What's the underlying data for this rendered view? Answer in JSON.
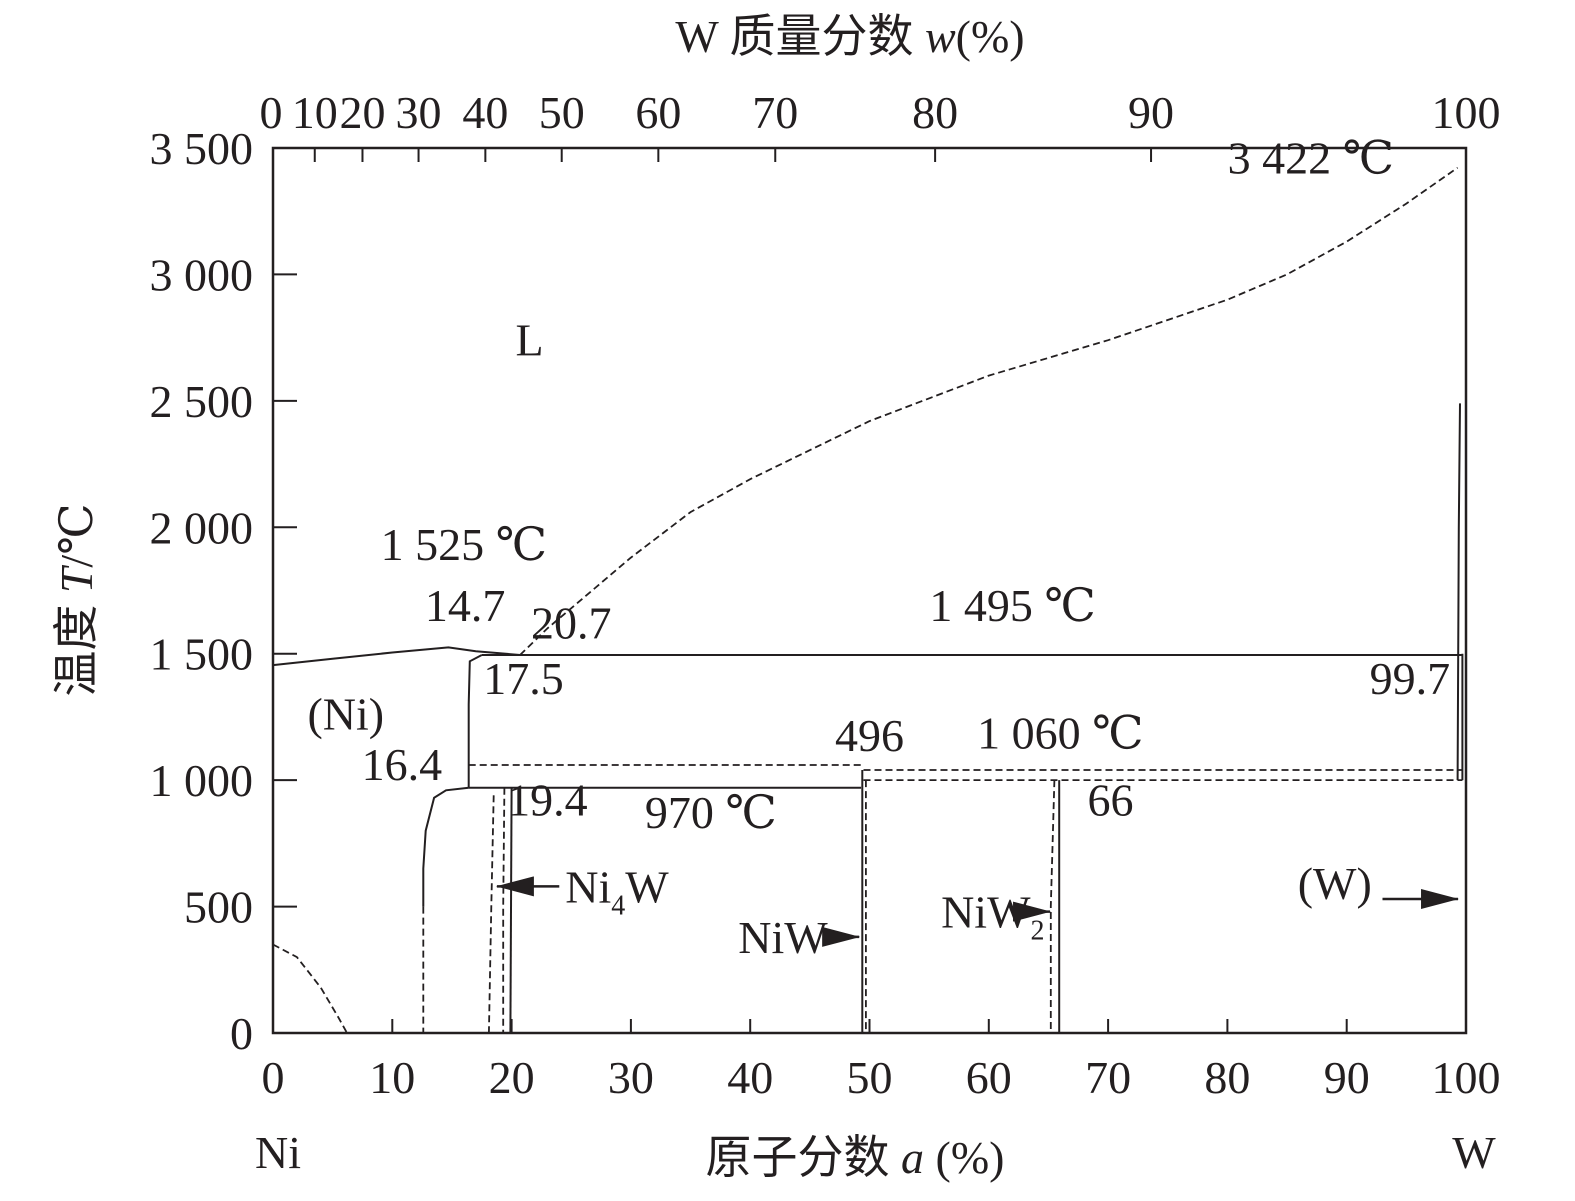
{
  "chart_data": {
    "type": "line",
    "title": "",
    "xlabel": {
      "text": "原子分数 ",
      "var": "a",
      "unit": " (%)"
    },
    "ylabel": {
      "text": "温度 ",
      "var": "T",
      "unit": "/℃"
    },
    "top_xlabel": {
      "text": "W 质量分数 ",
      "var": "w",
      "unit": "(%)"
    },
    "xlim": [
      0,
      100
    ],
    "ylim": [
      0,
      3500
    ],
    "x_ticks": [
      0,
      10,
      20,
      30,
      40,
      50,
      60,
      70,
      80,
      90,
      100
    ],
    "x_tick_labels": [
      "0",
      "10",
      "20",
      "30",
      "40",
      "50",
      "60",
      "70",
      "80",
      "90",
      "100"
    ],
    "y_ticks": [
      0,
      500,
      1000,
      1500,
      2000,
      2500,
      3000,
      3500
    ],
    "y_tick_labels": [
      "0",
      "500",
      "1 000",
      "1 500",
      "2 000",
      "2 500",
      "3 000",
      "3 500"
    ],
    "top_ticks": [
      {
        "a": 0,
        "label": "0"
      },
      {
        "a": 3.5,
        "label": "10"
      },
      {
        "a": 7.5,
        "label": "20"
      },
      {
        "a": 12.2,
        "label": "30"
      },
      {
        "a": 17.8,
        "label": "40"
      },
      {
        "a": 24.2,
        "label": "50"
      },
      {
        "a": 32.3,
        "label": "60"
      },
      {
        "a": 42.1,
        "label": "70"
      },
      {
        "a": 55.5,
        "label": "80"
      },
      {
        "a": 73.6,
        "label": "90"
      },
      {
        "a": 100,
        "label": "100"
      }
    ],
    "element_labels": {
      "left": "Ni",
      "right": "W"
    },
    "series": [
      {
        "style": "solid",
        "points": [
          [
            0,
            1455
          ],
          [
            5,
            1480
          ],
          [
            10,
            1505
          ],
          [
            14.7,
            1525
          ],
          [
            17,
            1510
          ],
          [
            20.7,
            1495
          ]
        ]
      },
      {
        "style": "dashed",
        "points": [
          [
            20.7,
            1495
          ],
          [
            23,
            1600
          ],
          [
            27,
            1760
          ],
          [
            30,
            1880
          ],
          [
            35,
            2060
          ],
          [
            40,
            2190
          ],
          [
            50,
            2420
          ],
          [
            60,
            2600
          ],
          [
            70,
            2740
          ],
          [
            80,
            2900
          ],
          [
            85,
            3000
          ],
          [
            90,
            3130
          ],
          [
            95,
            3280
          ],
          [
            99.3,
            3422
          ]
        ]
      },
      {
        "style": "solid",
        "points": [
          [
            17.5,
            1495
          ],
          [
            99.7,
            1495
          ]
        ]
      },
      {
        "style": "solid",
        "points": [
          [
            17.5,
            1495
          ],
          [
            16.5,
            1470
          ],
          [
            16.4,
            1300
          ],
          [
            16.4,
            1050
          ],
          [
            16.4,
            970
          ]
        ]
      },
      {
        "style": "solid",
        "points": [
          [
            16.4,
            970
          ],
          [
            14.5,
            960
          ],
          [
            13.5,
            930
          ],
          [
            12.8,
            800
          ],
          [
            12.6,
            650
          ],
          [
            12.6,
            500
          ]
        ]
      },
      {
        "style": "dashed",
        "points": [
          [
            12.6,
            500
          ],
          [
            12.6,
            0
          ]
        ]
      },
      {
        "style": "solid",
        "points": [
          [
            16.4,
            970
          ],
          [
            49.3,
            970
          ]
        ]
      },
      {
        "style": "dashed",
        "points": [
          [
            16.4,
            1060
          ],
          [
            49.5,
            1060
          ]
        ]
      },
      {
        "style": "dashed",
        "points": [
          [
            49.5,
            1040
          ],
          [
            99.7,
            1040
          ]
        ]
      },
      {
        "style": "dashed",
        "points": [
          [
            49.5,
            1000
          ],
          [
            99.7,
            1000
          ]
        ]
      },
      {
        "style": "dashed",
        "points": [
          [
            18.5,
            940
          ],
          [
            18.3,
            500
          ],
          [
            18.1,
            0
          ]
        ]
      },
      {
        "style": "dashed",
        "points": [
          [
            19.4,
            970
          ],
          [
            19.3,
            500
          ],
          [
            19.3,
            0
          ]
        ]
      },
      {
        "style": "solid",
        "points": [
          [
            20.0,
            970
          ],
          [
            19.9,
            0
          ]
        ]
      },
      {
        "style": "solid",
        "points": [
          [
            49.4,
            1040
          ],
          [
            49.4,
            0
          ]
        ]
      },
      {
        "style": "dashed",
        "points": [
          [
            49.7,
            1000
          ],
          [
            49.7,
            0
          ]
        ]
      },
      {
        "style": "dashed",
        "points": [
          [
            65.5,
            1000
          ],
          [
            65.2,
            500
          ],
          [
            65.2,
            0
          ]
        ]
      },
      {
        "style": "solid",
        "points": [
          [
            65.9,
            1000
          ],
          [
            65.9,
            0
          ]
        ]
      },
      {
        "style": "solid",
        "points": [
          [
            99.5,
            2490
          ],
          [
            99.4,
            2000
          ],
          [
            99.3,
            1000
          ]
        ]
      },
      {
        "style": "solid",
        "points": [
          [
            99.7,
            1500
          ],
          [
            99.7,
            1000
          ]
        ]
      },
      {
        "style": "dashed",
        "points": [
          [
            0,
            350
          ],
          [
            2,
            300
          ],
          [
            4,
            180
          ],
          [
            5.5,
            60
          ],
          [
            6.2,
            0
          ]
        ]
      }
    ],
    "annotations": [
      {
        "text": "3 422 ℃",
        "x": 87,
        "y": 3400
      },
      {
        "text": "L",
        "x": 21.5,
        "y": 2680
      },
      {
        "text": "1 525 ℃",
        "x": 16,
        "y": 1870
      },
      {
        "text": "14.7",
        "x": 16.1,
        "y": 1630
      },
      {
        "text": "20.7",
        "x": 25,
        "y": 1560
      },
      {
        "text": "1 495 ℃",
        "x": 62,
        "y": 1630
      },
      {
        "text": "17.5",
        "x": 21,
        "y": 1340
      },
      {
        "text": "99.7",
        "x": 95.3,
        "y": 1340
      },
      {
        "text": "(Ni)",
        "x": 6.1,
        "y": 1200
      },
      {
        "text": "496",
        "x": 50,
        "y": 1115
      },
      {
        "text": "1 060 ℃",
        "x": 66,
        "y": 1125
      },
      {
        "text": "16.4",
        "x": 10.8,
        "y": 1000
      },
      {
        "text": "19.4",
        "x": 23,
        "y": 860
      },
      {
        "text": "970 ℃",
        "x": 36.7,
        "y": 810
      },
      {
        "text": "66",
        "x": 70.2,
        "y": 860
      },
      {
        "text": "(W)",
        "x": 89,
        "y": 530
      }
    ],
    "phase_labels": [
      {
        "name": "Ni",
        "sub": "4",
        "tail": "W",
        "x": 24.5,
        "y": 580,
        "arrow_to": 18.6
      },
      {
        "name": "NiW",
        "sub": "",
        "tail": "",
        "x": 39,
        "y": 380,
        "arrow_to": 49.3
      },
      {
        "name": "NiW",
        "sub": "2",
        "tail": "",
        "x": 56,
        "y": 480,
        "arrow_to": 65.3
      },
      {
        "name": "",
        "sub": "",
        "tail": "",
        "x": 93,
        "y": 530,
        "arrow_to": 99.5
      }
    ]
  }
}
